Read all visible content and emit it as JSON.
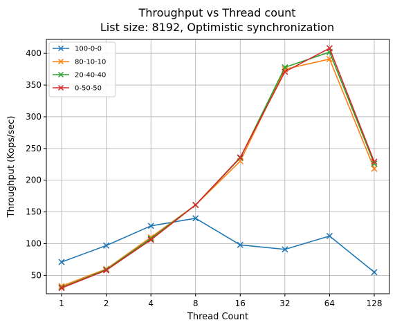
{
  "chart_data": {
    "type": "line",
    "title": "Throughput vs Thread count",
    "subtitle": "List size: 8192, Optimistic synchronization",
    "xlabel": "Thread Count",
    "ylabel": "Throughput (Kops/sec)",
    "categories": [
      "1",
      "2",
      "4",
      "8",
      "16",
      "32",
      "64",
      "128"
    ],
    "ylim": [
      21,
      422
    ],
    "yticks": [
      50,
      100,
      150,
      200,
      250,
      300,
      350,
      400
    ],
    "grid": true,
    "legend_position": "top-left",
    "marker": "x",
    "series": [
      {
        "name": "100-0-0",
        "color": "#1f77b4",
        "values": [
          71,
          97,
          128,
          140,
          98,
          91,
          112,
          55
        ]
      },
      {
        "name": "80-10-10",
        "color": "#ff7f0e",
        "values": [
          33,
          60,
          110,
          161,
          230,
          375,
          391,
          218
        ]
      },
      {
        "name": "20-40-40",
        "color": "#2ca02c",
        "values": [
          31,
          59,
          108,
          161,
          235,
          378,
          402,
          226
        ]
      },
      {
        "name": "0-50-50",
        "color": "#d62728",
        "values": [
          30,
          58,
          106,
          161,
          236,
          371,
          408,
          229
        ]
      }
    ]
  }
}
